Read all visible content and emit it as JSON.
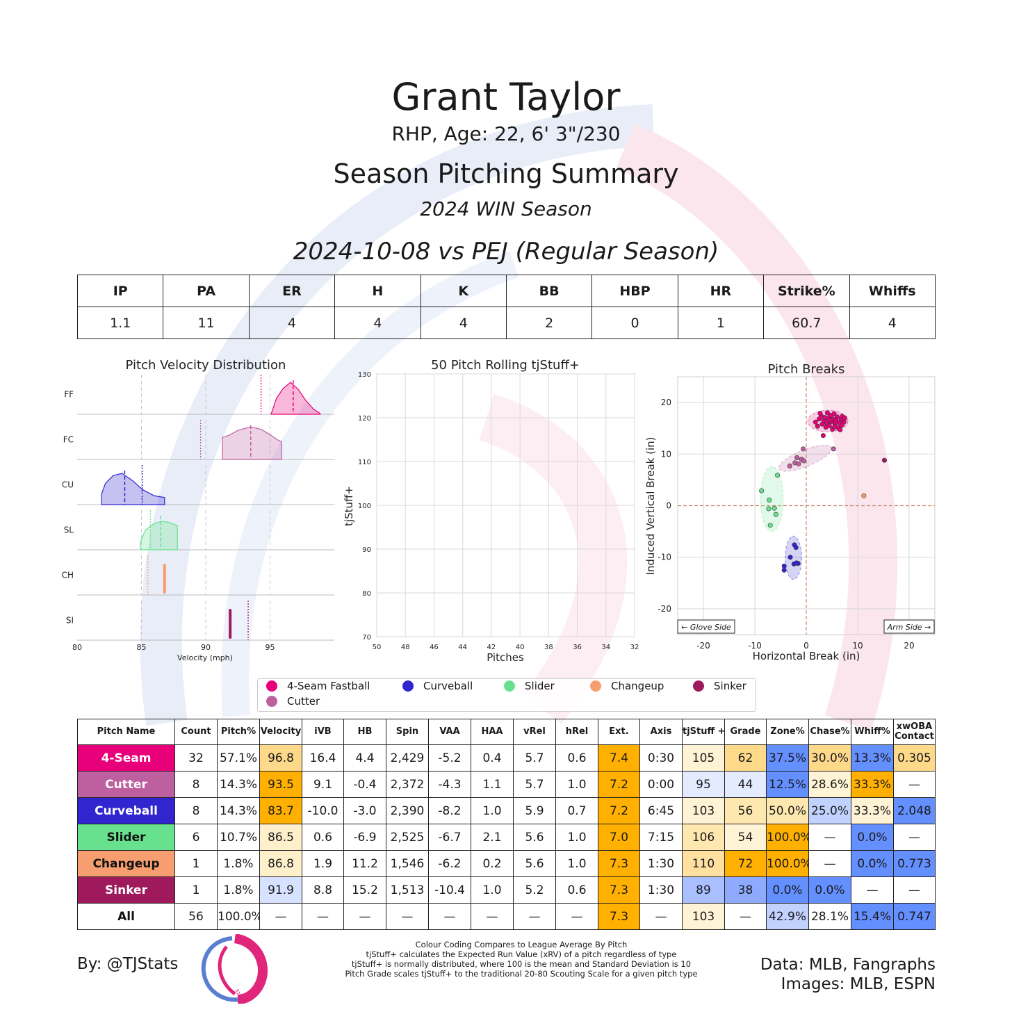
{
  "header": {
    "player_name": "Grant Taylor",
    "player_info": "RHP, Age: 22, 6' 3\"/230",
    "report_title": "Season Pitching Summary",
    "season": "2024 WIN Season",
    "game": "2024-10-08 vs PEJ (Regular Season)"
  },
  "stat_line": {
    "headers": [
      "IP",
      "PA",
      "ER",
      "H",
      "K",
      "BB",
      "HBP",
      "HR",
      "Strike%",
      "Whiffs"
    ],
    "values": [
      "1.1",
      "11",
      "4",
      "4",
      "4",
      "2",
      "0",
      "1",
      "60.7",
      "4"
    ]
  },
  "colors": {
    "FF": "#e8007a",
    "FC": "#be5fa0",
    "CU": "#3025ce",
    "SL": "#67e18d",
    "CH": "#f79e70",
    "SI": "#9e1a5c",
    "good_strong": "#ffb000",
    "good_mild": "#ffe8b0",
    "bad_mild": "#d6e2ff",
    "bad_strong": "#648fff",
    "neutral": "#ffffff"
  },
  "chart_data": [
    {
      "type": "area",
      "title": "Pitch Velocity Distribution",
      "xlabel": "Velocity (mph)",
      "xlim": [
        80,
        100
      ],
      "xticks": [
        80,
        85,
        90,
        95
      ],
      "gridlines": [
        85,
        90,
        95
      ],
      "series": [
        {
          "name": "FF",
          "color": "#e8007a",
          "range": [
            95.1,
            98.9
          ],
          "mean": 96.8,
          "league_mean": 94.3,
          "shape": [
            [
              95.1,
              0.02
            ],
            [
              95.5,
              0.45
            ],
            [
              96.0,
              0.72
            ],
            [
              96.6,
              0.9
            ],
            [
              97.2,
              0.7
            ],
            [
              97.8,
              0.38
            ],
            [
              98.4,
              0.14
            ],
            [
              98.9,
              0.02
            ]
          ]
        },
        {
          "name": "FC",
          "color": "#be5fa0",
          "range": [
            91.3,
            95.9
          ],
          "mean": 93.5,
          "league_mean": 89.6,
          "shape": [
            [
              91.3,
              0.62
            ],
            [
              91.8,
              0.68
            ],
            [
              92.5,
              0.82
            ],
            [
              93.5,
              0.92
            ],
            [
              94.3,
              0.85
            ],
            [
              95.0,
              0.7
            ],
            [
              95.6,
              0.55
            ],
            [
              95.9,
              0.5
            ]
          ]
        },
        {
          "name": "CU",
          "color": "#3025ce",
          "range": [
            81.9,
            86.8
          ],
          "mean": 83.7,
          "league_mean": 85.1,
          "shape": [
            [
              81.9,
              0.3
            ],
            [
              82.2,
              0.6
            ],
            [
              82.8,
              0.82
            ],
            [
              83.5,
              0.88
            ],
            [
              84.3,
              0.68
            ],
            [
              85.1,
              0.42
            ],
            [
              86.0,
              0.25
            ],
            [
              86.8,
              0.2
            ]
          ]
        },
        {
          "name": "SL",
          "color": "#67e18d",
          "range": [
            84.9,
            87.8
          ],
          "mean": 86.5,
          "league_mean": 85.7,
          "shape": [
            [
              84.9,
              0.2
            ],
            [
              85.3,
              0.55
            ],
            [
              85.9,
              0.72
            ],
            [
              86.5,
              0.8
            ],
            [
              87.1,
              0.78
            ],
            [
              87.8,
              0.68
            ]
          ]
        },
        {
          "name": "CH",
          "color": "#f79e70",
          "range": [
            86.8,
            86.8
          ],
          "mean": 86.8,
          "league_mean": 85.5,
          "shape": []
        },
        {
          "name": "SI",
          "color": "#9e1a5c",
          "range": [
            91.9,
            91.9
          ],
          "mean": 91.9,
          "league_mean": 93.3,
          "shape": []
        }
      ]
    },
    {
      "type": "line",
      "title": "50 Pitch Rolling tjStuff+",
      "xlabel": "Pitches",
      "ylabel": "tjStuff+",
      "x_ticks": [
        50,
        48,
        46,
        44,
        42,
        40,
        38,
        36,
        34,
        32
      ],
      "y_ticks": [
        70,
        80,
        90,
        100,
        110,
        120,
        130
      ],
      "ylim": [
        70,
        130
      ],
      "series": []
    },
    {
      "type": "scatter",
      "title": "Pitch Breaks",
      "xlabel": "Horizontal Break (in)",
      "ylabel": "Induced Vertical Break (in)",
      "xlim": [
        -25,
        25
      ],
      "ylim": [
        -25,
        25
      ],
      "xticks": [
        -20,
        -10,
        0,
        10,
        20
      ],
      "yticks": [
        20,
        10,
        0,
        -10,
        -20
      ],
      "annotations": [
        "← Glove Side",
        "Arm Side →"
      ],
      "series": [
        {
          "name": "FF",
          "color": "#e8007a",
          "ellipse": {
            "cx": 4.2,
            "cy": 16.4,
            "rx": 3.9,
            "ry": 2.1,
            "angle": 0
          },
          "points": [
            [
              1.8,
              16.2
            ],
            [
              2.2,
              15.4
            ],
            [
              2.5,
              16.8
            ],
            [
              2.9,
              17.4
            ],
            [
              3.1,
              15.8
            ],
            [
              3.4,
              16.5
            ],
            [
              3.6,
              17.1
            ],
            [
              3.8,
              15.2
            ],
            [
              4.0,
              16.0
            ],
            [
              4.1,
              18.0
            ],
            [
              4.3,
              16.9
            ],
            [
              4.5,
              15.5
            ],
            [
              4.7,
              17.5
            ],
            [
              4.9,
              16.3
            ],
            [
              5.1,
              14.8
            ],
            [
              5.2,
              16.8
            ],
            [
              5.4,
              17.8
            ],
            [
              5.6,
              15.9
            ],
            [
              5.8,
              16.5
            ],
            [
              6.0,
              17.2
            ],
            [
              6.2,
              15.1
            ],
            [
              6.4,
              16.1
            ],
            [
              6.6,
              14.7
            ],
            [
              6.8,
              16.8
            ],
            [
              7.0,
              17.3
            ],
            [
              7.3,
              16.2
            ],
            [
              7.5,
              17.0
            ],
            [
              3.3,
              13.6
            ],
            [
              2.7,
              17.9
            ],
            [
              4.6,
              16.6
            ],
            [
              5.5,
              15.3
            ],
            [
              6.9,
              15.6
            ]
          ]
        },
        {
          "name": "FC",
          "color": "#be5fa0",
          "ellipse": {
            "cx": -0.2,
            "cy": 9.2,
            "rx": 5.5,
            "ry": 1.6,
            "angle": -22
          },
          "points": [
            [
              -3.2,
              7.7
            ],
            [
              -2.2,
              8.3
            ],
            [
              -1.8,
              9.3
            ],
            [
              -1.5,
              8.1
            ],
            [
              -0.9,
              9.0
            ],
            [
              -0.6,
              11.0
            ],
            [
              -0.5,
              8.7
            ],
            [
              5.3,
              11.0
            ]
          ]
        },
        {
          "name": "CU",
          "color": "#3025ce",
          "ellipse": {
            "cx": -2.5,
            "cy": -10.1,
            "rx": 1.6,
            "ry": 4.2,
            "angle": 0
          },
          "points": [
            [
              -3.1,
              -10.0
            ],
            [
              -2.3,
              -7.6
            ],
            [
              -2.0,
              -8.1
            ],
            [
              -1.6,
              -11.2
            ],
            [
              -2.4,
              -11.3
            ],
            [
              -4.3,
              -11.7
            ],
            [
              -4.3,
              -12.5
            ],
            [
              -1.9,
              -11.1
            ]
          ]
        },
        {
          "name": "SL",
          "color": "#67e18d",
          "ellipse": {
            "cx": -6.7,
            "cy": 1.3,
            "rx": 2.2,
            "ry": 6.3,
            "angle": 0
          },
          "points": [
            [
              -8.7,
              2.9
            ],
            [
              -7.2,
              1.1
            ],
            [
              -7.3,
              -0.6
            ],
            [
              -6.2,
              -0.5
            ],
            [
              -5.9,
              -1.7
            ],
            [
              -7.0,
              -3.8
            ],
            [
              -5.6,
              5.9
            ]
          ]
        },
        {
          "name": "CH",
          "color": "#f79e70",
          "points": [
            [
              11.2,
              1.9
            ]
          ]
        },
        {
          "name": "SI",
          "color": "#9e1a5c",
          "points": [
            [
              15.2,
              8.8
            ]
          ]
        }
      ]
    }
  ],
  "legend": {
    "items": [
      {
        "label": "4-Seam Fastball",
        "color": "#e8007a"
      },
      {
        "label": "Curveball",
        "color": "#3025ce"
      },
      {
        "label": "Slider",
        "color": "#67e18d"
      },
      {
        "label": "Changeup",
        "color": "#f79e70"
      },
      {
        "label": "Sinker",
        "color": "#9e1a5c"
      },
      {
        "label": "Cutter",
        "color": "#be5fa0"
      }
    ]
  },
  "pitch_table": {
    "headers": [
      "Pitch Name",
      "Count",
      "Pitch%",
      "Velocity",
      "iVB",
      "HB",
      "Spin",
      "VAA",
      "HAA",
      "vRel",
      "hRel",
      "Ext.",
      "Axis",
      "tjStuff +",
      "Grade",
      "Zone%",
      "Chase%",
      "Whiff%",
      "xwOBA\nContact"
    ],
    "rows": [
      {
        "name": "4-Seam",
        "name_bg": "#e8007a",
        "name_fg": "#ffffff",
        "cells": [
          "32",
          "57.1%",
          "96.8",
          "16.4",
          "4.4",
          "2,429",
          "-5.2",
          "0.4",
          "5.7",
          "0.6",
          "7.4",
          "0:30",
          "105",
          "62",
          "37.5%",
          "30.0%",
          "13.3%",
          "0.305"
        ],
        "shades": [
          "",
          "",
          "#ffd98a",
          "",
          "",
          "",
          "",
          "",
          "",
          "",
          "#ffb000",
          "",
          "#fff3d6",
          "#ffd98a",
          "#648fff",
          "#ffd98a",
          "#648fff",
          "#ffd98a"
        ]
      },
      {
        "name": "Cutter",
        "name_bg": "#be5fa0",
        "name_fg": "#ffffff",
        "cells": [
          "8",
          "14.3%",
          "93.5",
          "9.1",
          "-0.4",
          "2,372",
          "-4.3",
          "1.1",
          "5.7",
          "1.0",
          "7.2",
          "0:00",
          "95",
          "44",
          "12.5%",
          "28.6%",
          "33.3%",
          "—"
        ],
        "shades": [
          "",
          "",
          "#ffb000",
          "",
          "",
          "",
          "",
          "",
          "",
          "",
          "#ffb000",
          "",
          "#e4ebff",
          "#e4ebff",
          "#648fff",
          "#fff3d6",
          "#ffb000",
          ""
        ]
      },
      {
        "name": "Curveball",
        "name_bg": "#3025ce",
        "name_fg": "#ffffff",
        "cells": [
          "8",
          "14.3%",
          "83.7",
          "-10.0",
          "-3.0",
          "2,390",
          "-8.2",
          "1.0",
          "5.9",
          "0.7",
          "7.2",
          "6:45",
          "103",
          "56",
          "50.0%",
          "25.0%",
          "33.3%",
          "2.048"
        ],
        "shades": [
          "",
          "",
          "#ffb000",
          "",
          "",
          "",
          "",
          "",
          "",
          "",
          "#ffb000",
          "",
          "#fff3d6",
          "#ffe8b0",
          "#ffe8b0",
          "#c2d2ff",
          "#fff3d6",
          "#648fff"
        ]
      },
      {
        "name": "Slider",
        "name_bg": "#67e18d",
        "name_fg": "#111111",
        "cells": [
          "6",
          "10.7%",
          "86.5",
          "0.6",
          "-6.9",
          "2,525",
          "-6.7",
          "2.1",
          "5.6",
          "1.0",
          "7.0",
          "7:15",
          "106",
          "54",
          "100.0%",
          "—",
          "0.0%",
          "—"
        ],
        "shades": [
          "",
          "",
          "#fff0cc",
          "",
          "",
          "",
          "",
          "",
          "",
          "",
          "#ffb000",
          "",
          "#ffe8b0",
          "#fff3d6",
          "#ffb000",
          "",
          "#648fff",
          ""
        ]
      },
      {
        "name": "Changeup",
        "name_bg": "#f79e70",
        "name_fg": "#111111",
        "cells": [
          "1",
          "1.8%",
          "86.8",
          "1.9",
          "11.2",
          "1,546",
          "-6.2",
          "0.2",
          "5.6",
          "1.0",
          "7.3",
          "1:30",
          "110",
          "72",
          "100.0%",
          "—",
          "0.0%",
          "0.773"
        ],
        "shades": [
          "",
          "",
          "#fff0cc",
          "",
          "",
          "",
          "",
          "",
          "",
          "",
          "#ffb000",
          "",
          "#ffe0a0",
          "#ffb000",
          "#ffb000",
          "",
          "#648fff",
          "#648fff"
        ]
      },
      {
        "name": "Sinker",
        "name_bg": "#9e1a5c",
        "name_fg": "#ffffff",
        "cells": [
          "1",
          "1.8%",
          "91.9",
          "8.8",
          "15.2",
          "1,513",
          "-10.4",
          "1.0",
          "5.2",
          "0.6",
          "7.3",
          "1:30",
          "89",
          "38",
          "0.0%",
          "0.0%",
          "—",
          "—"
        ],
        "shades": [
          "",
          "",
          "#d6e2ff",
          "",
          "",
          "",
          "",
          "",
          "",
          "",
          "#ffb000",
          "",
          "#a9bfff",
          "#8eaaff",
          "#648fff",
          "#648fff",
          "",
          ""
        ]
      },
      {
        "name": "All",
        "name_bg": "#ffffff",
        "name_fg": "#111111",
        "cells": [
          "56",
          "100.0%",
          "—",
          "—",
          "—",
          "—",
          "—",
          "—",
          "—",
          "—",
          "7.3",
          "—",
          "103",
          "—",
          "42.9%",
          "28.1%",
          "15.4%",
          "0.747"
        ],
        "shades": [
          "",
          "",
          "",
          "",
          "",
          "",
          "",
          "",
          "",
          "",
          "#ffb000",
          "",
          "#fff3d6",
          "",
          "#c2d2ff",
          "",
          "#648fff",
          "#648fff"
        ]
      }
    ]
  },
  "footer": {
    "credit_left": "By: @TJStats",
    "notes": [
      "Colour Coding Compares to League Average By Pitch",
      "tjStuff+ calculates the Expected Run Value (xRV) of a pitch regardless of type",
      "tjStuff+ is normally distributed, where 100 is the mean and Standard Deviation is 10",
      "Pitch Grade scales tjStuff+ to the traditional 20-80 Scouting Scale for a given pitch type"
    ],
    "credit_right_1": "Data: MLB, Fangraphs",
    "credit_right_2": "Images: MLB, ESPN",
    "logo_text": "STATS"
  }
}
